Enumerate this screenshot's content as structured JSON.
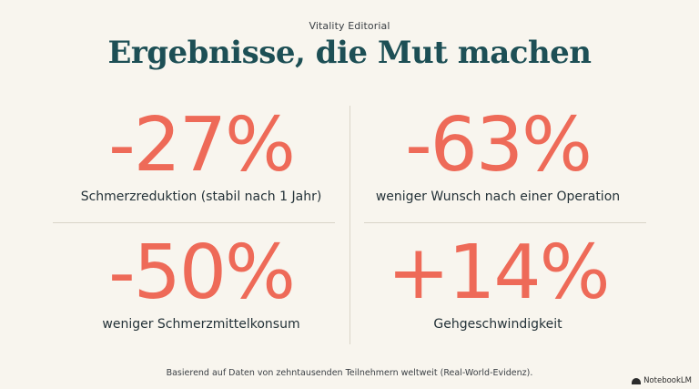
{
  "header": {
    "eyebrow": "Vitality Editorial",
    "title": "Ergebnisse, die Mut machen"
  },
  "stats": [
    {
      "value": "-27%",
      "label": "Schmerzreduktion (stabil nach 1 Jahr)"
    },
    {
      "value": "-63%",
      "label": "weniger Wunsch nach einer Operation"
    },
    {
      "value": "-50%",
      "label": "weniger Schmerzmittelkonsum"
    },
    {
      "value": "+14%",
      "label": "Gehgeschwindigkeit"
    }
  ],
  "footer": {
    "note": "Basierend auf Daten von zehntausenden Teilnehmern weltweit (Real-World-Evidenz).",
    "brand": "NotebookLM",
    "brand_icon": "notebooklm-logo-icon"
  },
  "colors": {
    "background": "#f8f5ee",
    "title": "#1d4f55",
    "accent": "#ee6a58"
  }
}
